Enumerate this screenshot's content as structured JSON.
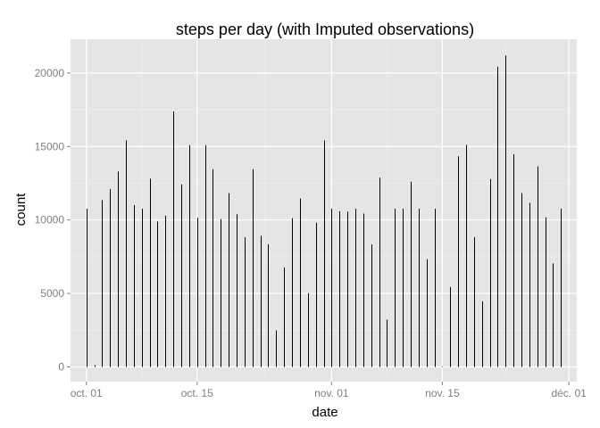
{
  "chart_data": {
    "type": "bar",
    "title": "steps per day (with Imputed observations)",
    "xlabel": "date",
    "ylabel": "count",
    "x_ticks": [
      {
        "date": "2012-10-01",
        "label": "oct. 01"
      },
      {
        "date": "2012-10-15",
        "label": "oct. 15"
      },
      {
        "date": "2012-11-01",
        "label": "nov. 01"
      },
      {
        "date": "2012-11-15",
        "label": "nov. 15"
      },
      {
        "date": "2012-12-01",
        "label": "déc. 01"
      }
    ],
    "y_ticks": [
      0,
      5000,
      10000,
      15000,
      20000
    ],
    "xlim": [
      "2012-09-29",
      "2012-12-02"
    ],
    "ylim": [
      -1000,
      22300
    ],
    "grid": true,
    "background": "#e5e5e5",
    "grid_color": "#ffffff",
    "bar_color": "#000000",
    "dates": [
      "2012-10-01",
      "2012-10-02",
      "2012-10-03",
      "2012-10-04",
      "2012-10-05",
      "2012-10-06",
      "2012-10-07",
      "2012-10-08",
      "2012-10-09",
      "2012-10-10",
      "2012-10-11",
      "2012-10-12",
      "2012-10-13",
      "2012-10-14",
      "2012-10-15",
      "2012-10-16",
      "2012-10-17",
      "2012-10-18",
      "2012-10-19",
      "2012-10-20",
      "2012-10-21",
      "2012-10-22",
      "2012-10-23",
      "2012-10-24",
      "2012-10-25",
      "2012-10-26",
      "2012-10-27",
      "2012-10-28",
      "2012-10-29",
      "2012-10-30",
      "2012-10-31",
      "2012-11-01",
      "2012-11-02",
      "2012-11-03",
      "2012-11-04",
      "2012-11-05",
      "2012-11-06",
      "2012-11-07",
      "2012-11-08",
      "2012-11-09",
      "2012-11-10",
      "2012-11-11",
      "2012-11-12",
      "2012-11-13",
      "2012-11-14",
      "2012-11-15",
      "2012-11-16",
      "2012-11-17",
      "2012-11-18",
      "2012-11-19",
      "2012-11-20",
      "2012-11-21",
      "2012-11-22",
      "2012-11-23",
      "2012-11-24",
      "2012-11-25",
      "2012-11-26",
      "2012-11-27",
      "2012-11-28",
      "2012-11-29",
      "2012-11-30"
    ],
    "values": [
      10766,
      126,
      11352,
      12116,
      13294,
      15420,
      11015,
      10766,
      12811,
      9900,
      10304,
      17382,
      12426,
      15098,
      10139,
      15084,
      13452,
      10056,
      11829,
      10395,
      8821,
      13460,
      8918,
      8355,
      2492,
      6778,
      10119,
      11458,
      5018,
      9819,
      15414,
      10766,
      10600,
      10571,
      10766,
      10439,
      8334,
      12883,
      3219,
      10766,
      10766,
      12608,
      10765,
      7336,
      10766,
      41,
      5441,
      14339,
      15110,
      8841,
      4472,
      12787,
      20427,
      21194,
      14478,
      11834,
      11162,
      13646,
      10183,
      7047,
      10766
    ]
  }
}
